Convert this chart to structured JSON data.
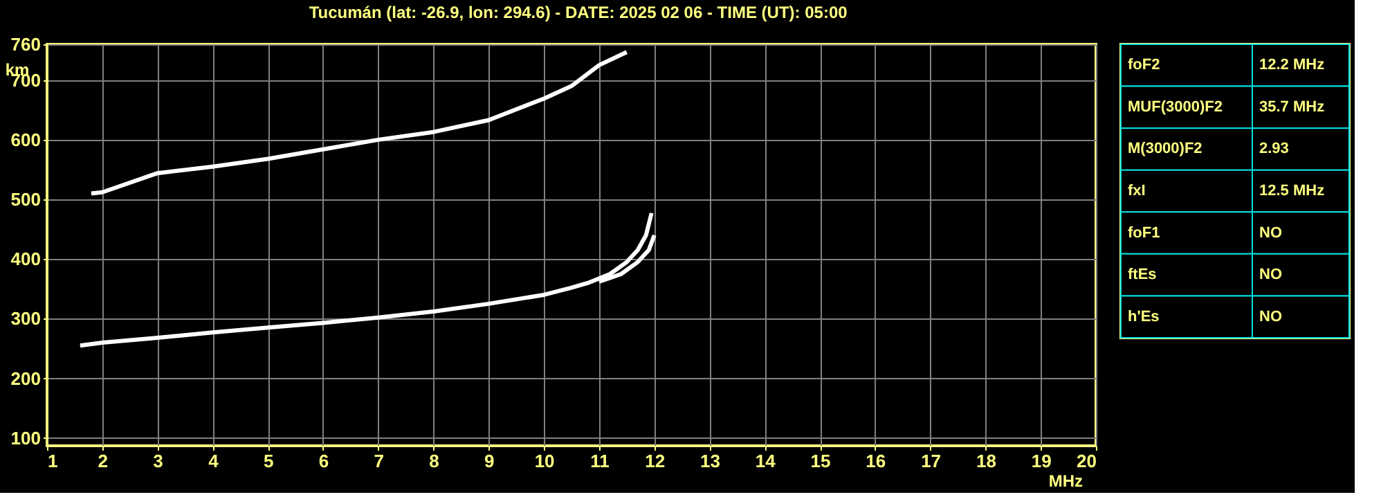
{
  "chart_data": [
    {
      "type": "line",
      "title": "Tucumán (lat: -26.9, lon: 294.6) - DATE: 2025 02 06 - TIME (UT): 05:00",
      "xlabel": "MHz",
      "ylabel": "km",
      "xlim": [
        1,
        20
      ],
      "xticks": [
        1,
        2,
        3,
        4,
        5,
        6,
        7,
        8,
        9,
        10,
        11,
        12,
        13,
        14,
        15,
        16,
        17,
        18,
        19,
        20
      ],
      "ylim": [
        87,
        760
      ],
      "yticks": [
        100,
        200,
        300,
        400,
        500,
        600,
        700,
        760
      ],
      "grid": true,
      "legend": false,
      "marker": "none",
      "line_style": "solid",
      "series": [
        {
          "color": "#ffffff",
          "x": [
            1.6,
            2,
            3,
            4,
            5,
            6,
            7,
            8,
            9,
            10,
            10.5,
            10.8,
            11.2,
            11.5,
            11.7,
            11.85,
            11.95
          ],
          "values": [
            255,
            260,
            268,
            277,
            285,
            293,
            302,
            312,
            325,
            340,
            352,
            360,
            375,
            395,
            415,
            440,
            477
          ]
        },
        {
          "color": "#ffffff",
          "x": [
            11.0,
            11.4,
            11.7,
            11.9,
            12.0
          ],
          "values": [
            362,
            375,
            395,
            415,
            440
          ]
        },
        {
          "color": "#ffffff",
          "x": [
            1.8,
            2,
            3,
            4,
            5,
            6,
            7,
            8,
            9,
            10,
            10.5,
            11,
            11.5
          ],
          "values": [
            510,
            512,
            544,
            555,
            568,
            584,
            600,
            613,
            633,
            669,
            690,
            725,
            747
          ]
        }
      ]
    },
    {
      "type": "other",
      "annotations": [
        "foF2",
        "12.2 MHz",
        "MUF(3000)F2",
        "35.7 MHz",
        "M(3000)F2",
        "2.93",
        "fxI",
        "12.5 MHz",
        "foF1",
        "NO",
        "ftEs",
        "NO",
        "h'Es",
        "NO"
      ]
    }
  ]
}
